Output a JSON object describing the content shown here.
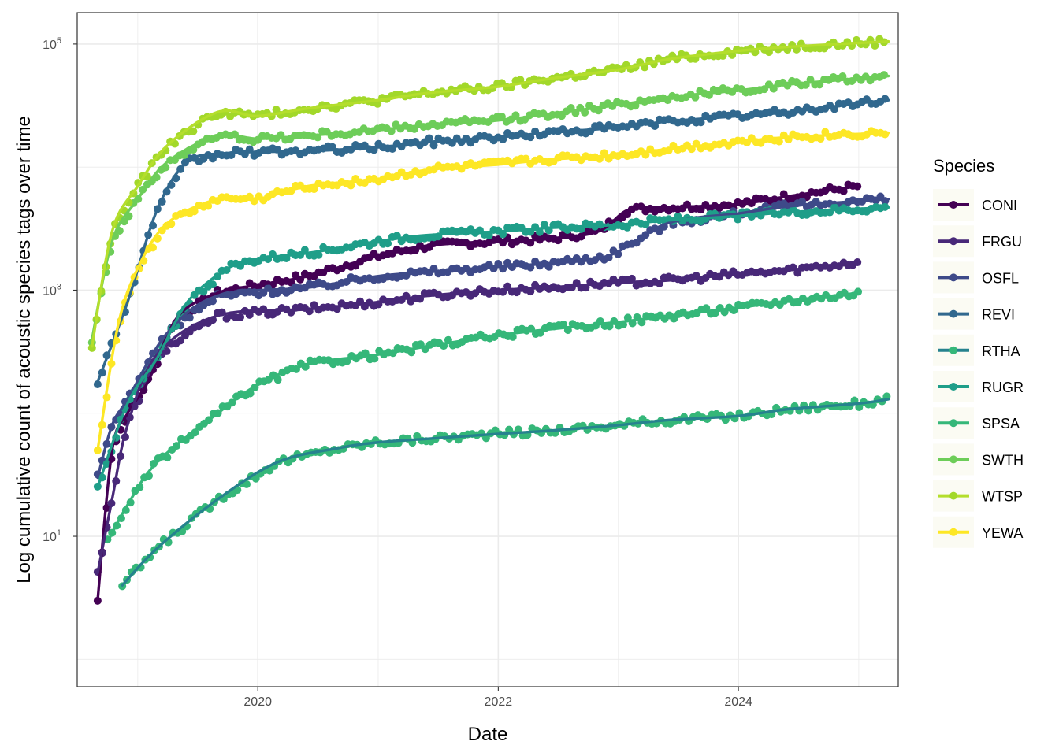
{
  "chart_data": {
    "type": "line",
    "title": "",
    "xlabel": "Date",
    "ylabel": "Log cumulative count of acoustic species tags over time",
    "x_scale": "date",
    "y_scale": "log10",
    "xlim": [
      "2018-07-01",
      "2025-05-01"
    ],
    "ylim": [
      0.6,
      180000
    ],
    "x_ticks": [
      {
        "value": "2020-01-01",
        "label": "2020"
      },
      {
        "value": "2022-01-01",
        "label": "2022"
      },
      {
        "value": "2024-01-01",
        "label": "2024"
      }
    ],
    "y_ticks": [
      {
        "value": 10,
        "base": "10",
        "exp": "1"
      },
      {
        "value": 1000,
        "base": "10",
        "exp": "3"
      },
      {
        "value": 100000,
        "base": "10",
        "exp": "5"
      }
    ],
    "grid": true,
    "legend": {
      "title": "Species",
      "position": "right"
    },
    "series": [
      {
        "name": "CONI",
        "color": "#440154",
        "point_color": "#440154",
        "x": [
          "2018-09-01",
          "2018-10-15",
          "2018-12-01",
          "2019-02-01",
          "2019-05-01",
          "2019-09-01",
          "2020-01-01",
          "2020-06-01",
          "2021-01-01",
          "2021-06-01",
          "2022-01-01",
          "2022-06-01",
          "2022-11-01",
          "2023-02-01",
          "2023-06-01",
          "2024-01-01",
          "2024-06-01",
          "2025-01-01"
        ],
        "y": [
          3,
          50,
          100,
          180,
          600,
          950,
          1100,
          1300,
          1900,
          2300,
          2500,
          2600,
          3000,
          4500,
          4700,
          5000,
          5800,
          7000
        ]
      },
      {
        "name": "FRGU",
        "color": "#482878",
        "point_color": "#482878",
        "x": [
          "2018-09-01",
          "2018-10-15",
          "2018-12-01",
          "2019-03-01",
          "2019-09-01",
          "2020-06-01",
          "2021-01-01",
          "2021-06-01",
          "2022-01-01",
          "2022-06-01",
          "2023-01-01",
          "2023-06-01",
          "2024-01-01",
          "2024-06-01",
          "2025-01-01"
        ],
        "y": [
          5,
          20,
          80,
          300,
          620,
          700,
          800,
          900,
          1000,
          1050,
          1150,
          1200,
          1350,
          1450,
          1700
        ]
      },
      {
        "name": "OSFL",
        "color": "#3E4A89",
        "point_color": "#3E4A89",
        "x": [
          "2018-09-01",
          "2018-10-15",
          "2018-12-01",
          "2019-04-01",
          "2019-09-01",
          "2020-06-01",
          "2021-01-01",
          "2021-06-01",
          "2022-01-01",
          "2022-06-01",
          "2022-12-01",
          "2023-06-01",
          "2024-01-01",
          "2024-06-01",
          "2025-01-01",
          "2025-04-01"
        ],
        "y": [
          30,
          80,
          130,
          450,
          900,
          1050,
          1300,
          1400,
          1550,
          1650,
          1900,
          3500,
          4200,
          4800,
          5300,
          5500
        ]
      },
      {
        "name": "REVI",
        "color": "#31688E",
        "point_color": "#31688E",
        "x": [
          "2018-09-01",
          "2018-12-01",
          "2019-03-01",
          "2019-06-01",
          "2019-10-01",
          "2020-06-01",
          "2021-01-01",
          "2021-06-01",
          "2022-01-01",
          "2022-06-01",
          "2023-01-01",
          "2023-06-01",
          "2024-01-01",
          "2024-06-01",
          "2025-01-01",
          "2025-04-01"
        ],
        "y": [
          180,
          800,
          4500,
          11000,
          13000,
          13500,
          14500,
          16000,
          17500,
          19000,
          21000,
          23500,
          26000,
          28000,
          33000,
          35000
        ]
      },
      {
        "name": "RTHA",
        "color": "#26828E",
        "point_color": "#35B779",
        "x": [
          "2018-11-15",
          "2019-03-01",
          "2019-09-01",
          "2020-03-01",
          "2020-09-01",
          "2021-01-01",
          "2021-06-01",
          "2022-01-01",
          "2022-06-01",
          "2023-01-01",
          "2023-06-01",
          "2024-01-01",
          "2024-06-01",
          "2025-01-01",
          "2025-04-01"
        ],
        "y": [
          4,
          8,
          20,
          40,
          52,
          58,
          62,
          68,
          72,
          80,
          88,
          95,
          108,
          120,
          130
        ]
      },
      {
        "name": "RUGR",
        "color": "#1F9E89",
        "point_color": "#1F9E89",
        "x": [
          "2018-09-01",
          "2018-12-01",
          "2019-03-01",
          "2019-06-01",
          "2019-10-01",
          "2020-01-01",
          "2020-06-01",
          "2021-01-01",
          "2021-06-01",
          "2022-01-01",
          "2022-06-01",
          "2023-01-01",
          "2023-06-01",
          "2024-01-01",
          "2024-06-01",
          "2025-04-01"
        ],
        "y": [
          25,
          120,
          280,
          800,
          1500,
          1800,
          2000,
          2500,
          2800,
          3000,
          3200,
          3400,
          3700,
          4000,
          4300,
          4700
        ]
      },
      {
        "name": "SPSA",
        "color": "#35B779",
        "point_color": "#35B779",
        "x": [
          "2018-10-01",
          "2018-12-01",
          "2019-03-01",
          "2019-09-01",
          "2020-01-01",
          "2020-06-01",
          "2021-01-01",
          "2021-06-01",
          "2022-01-01",
          "2022-06-01",
          "2023-01-01",
          "2023-06-01",
          "2024-01-01",
          "2024-06-01",
          "2025-01-01"
        ],
        "y": [
          9,
          18,
          40,
          100,
          170,
          250,
          300,
          350,
          430,
          480,
          550,
          620,
          720,
          820,
          950
        ]
      },
      {
        "name": "SWTH",
        "color": "#6DCD59",
        "point_color": "#6DCD59",
        "x": [
          "2018-08-15",
          "2018-10-15",
          "2019-01-01",
          "2019-04-01",
          "2019-09-01",
          "2020-01-01",
          "2020-06-01",
          "2021-01-01",
          "2021-06-01",
          "2022-01-01",
          "2022-06-01",
          "2023-01-01",
          "2023-06-01",
          "2024-01-01",
          "2024-06-01",
          "2025-04-01"
        ],
        "y": [
          400,
          2500,
          5500,
          11000,
          18000,
          17000,
          18000,
          20000,
          22000,
          24000,
          27000,
          32000,
          37000,
          42000,
          47000,
          55000
        ]
      },
      {
        "name": "WTSP",
        "color": "#B4DE2C",
        "point_color": "#A2D82A",
        "x": [
          "2018-08-15",
          "2018-10-15",
          "2019-01-01",
          "2019-04-01",
          "2019-09-01",
          "2020-01-01",
          "2020-06-01",
          "2021-01-01",
          "2021-06-01",
          "2022-01-01",
          "2022-06-01",
          "2023-01-01",
          "2023-06-01",
          "2024-01-01",
          "2024-06-01",
          "2025-04-01"
        ],
        "y": [
          350,
          3000,
          7000,
          15000,
          28000,
          26000,
          30000,
          35000,
          40000,
          45000,
          52000,
          62000,
          75000,
          88000,
          95000,
          105000
        ]
      },
      {
        "name": "YEWA",
        "color": "#FDE725",
        "point_color": "#FDE725",
        "x": [
          "2018-09-01",
          "2018-11-01",
          "2019-01-01",
          "2019-04-01",
          "2019-09-01",
          "2020-01-01",
          "2020-06-01",
          "2021-01-01",
          "2021-06-01",
          "2022-01-01",
          "2022-06-01",
          "2023-01-01",
          "2023-06-01",
          "2024-01-01",
          "2024-06-01",
          "2025-04-01"
        ],
        "y": [
          50,
          500,
          1500,
          3500,
          5500,
          5500,
          7000,
          8000,
          9500,
          10500,
          11500,
          12500,
          14000,
          16000,
          17500,
          19000
        ]
      }
    ]
  }
}
